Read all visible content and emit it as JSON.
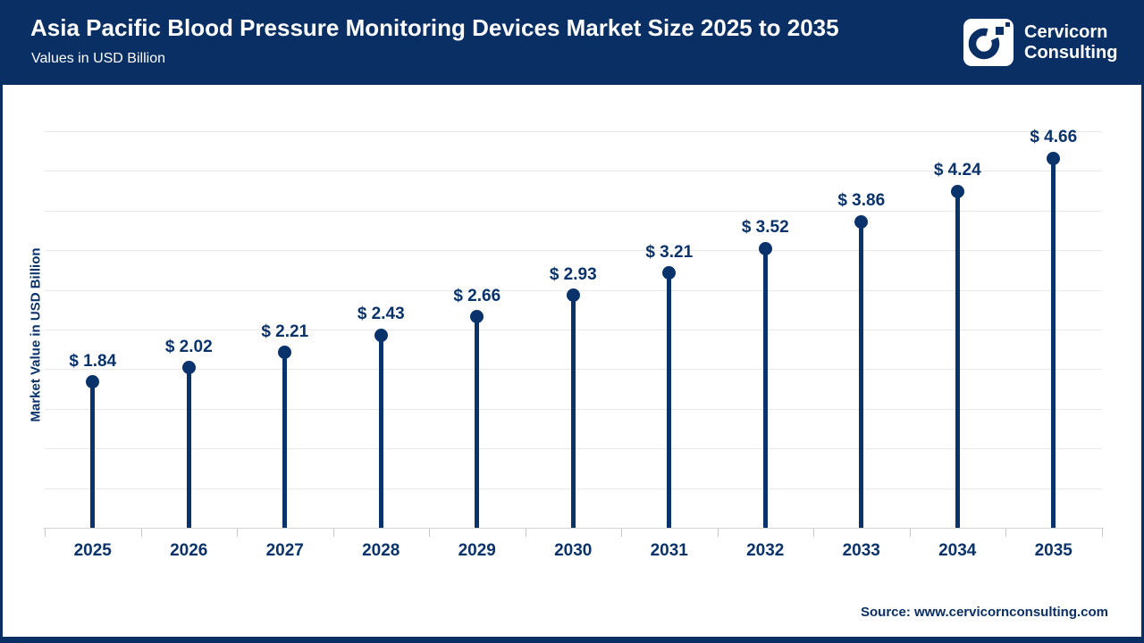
{
  "header": {
    "title": "Asia Pacific Blood Pressure Monitoring Devices Market Size 2025 to 2035",
    "subtitle": "Values in USD Billion",
    "brand_line1": "Cervicorn",
    "brand_line2": "Consulting"
  },
  "footer": {
    "source": "Source: www.cervicornconsulting.com"
  },
  "colors": {
    "navy_header": "#092f64",
    "navy_data": "#0a336b",
    "gridline": "#e8e8e8",
    "axis": "#d4d4d4",
    "tick": "#c6c6c6",
    "background": "#ffffff",
    "text_on_navy": "#ffffff"
  },
  "icons": {
    "brand_logo": "cervicorn-c-logo"
  },
  "chart_data": {
    "type": "scatter",
    "variant": "lollipop-stem",
    "title": "Asia Pacific Blood Pressure Monitoring Devices Market Size 2025 to 2035",
    "subtitle": "Values in USD Billion",
    "categories": [
      "2025",
      "2026",
      "2027",
      "2028",
      "2029",
      "2030",
      "2031",
      "2032",
      "2033",
      "2034",
      "2035"
    ],
    "values": [
      1.84,
      2.02,
      2.21,
      2.43,
      2.66,
      2.93,
      3.21,
      3.52,
      3.86,
      4.24,
      4.66
    ],
    "labels": [
      "$ 1.84",
      "$ 2.02",
      "$ 2.21",
      "$ 2.43",
      "$ 2.66",
      "$ 2.93",
      "$ 3.21",
      "$ 3.52",
      "$ 3.86",
      "$ 4.24",
      "$ 4.66"
    ],
    "xlabel": "",
    "ylabel": "Market Value in USD Billion",
    "ylim": [
      0,
      5.0
    ],
    "grid_step": 0.5,
    "grid": "horizontal",
    "legend": "none",
    "y_tick_labels_shown": false
  }
}
